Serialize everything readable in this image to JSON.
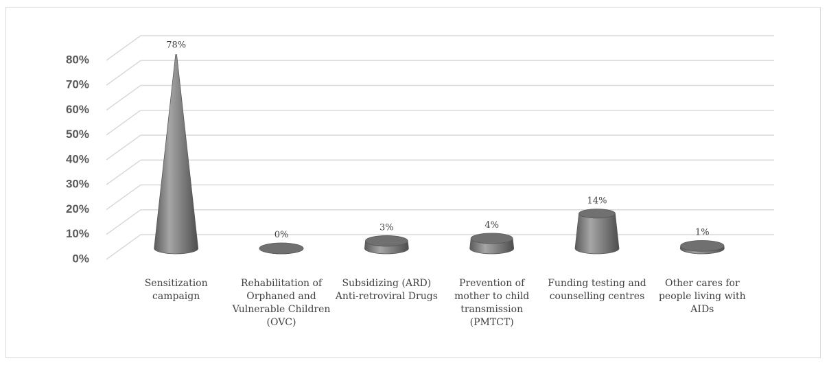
{
  "chart_data": {
    "type": "bar",
    "shape": "cone",
    "categories": [
      "Sensitization campaign",
      "Rehabilitation of Orphaned and Vulnerable Children (OVC)",
      "Subsidizing (ARD) Anti-retroviral Drugs",
      "Prevention of mother to child transmission (PMTCT)",
      "Funding testing and counselling centres",
      "Other cares for people living with AIDs"
    ],
    "values": [
      78,
      0,
      3,
      4,
      14,
      1
    ],
    "value_labels": [
      "78%",
      "0%",
      "3%",
      "4%",
      "14%",
      "1%"
    ],
    "color": "#7f7f7f",
    "ylim": [
      0,
      80
    ],
    "yticks": [
      {
        "value": 0,
        "label": "0%"
      },
      {
        "value": 10,
        "label": "10%"
      },
      {
        "value": 20,
        "label": "20%"
      },
      {
        "value": 30,
        "label": "30%"
      },
      {
        "value": 40,
        "label": "40%"
      },
      {
        "value": 50,
        "label": "50%"
      },
      {
        "value": 60,
        "label": "60%"
      },
      {
        "value": 70,
        "label": "70%"
      },
      {
        "value": 80,
        "label": "80%"
      }
    ],
    "grid": true
  }
}
